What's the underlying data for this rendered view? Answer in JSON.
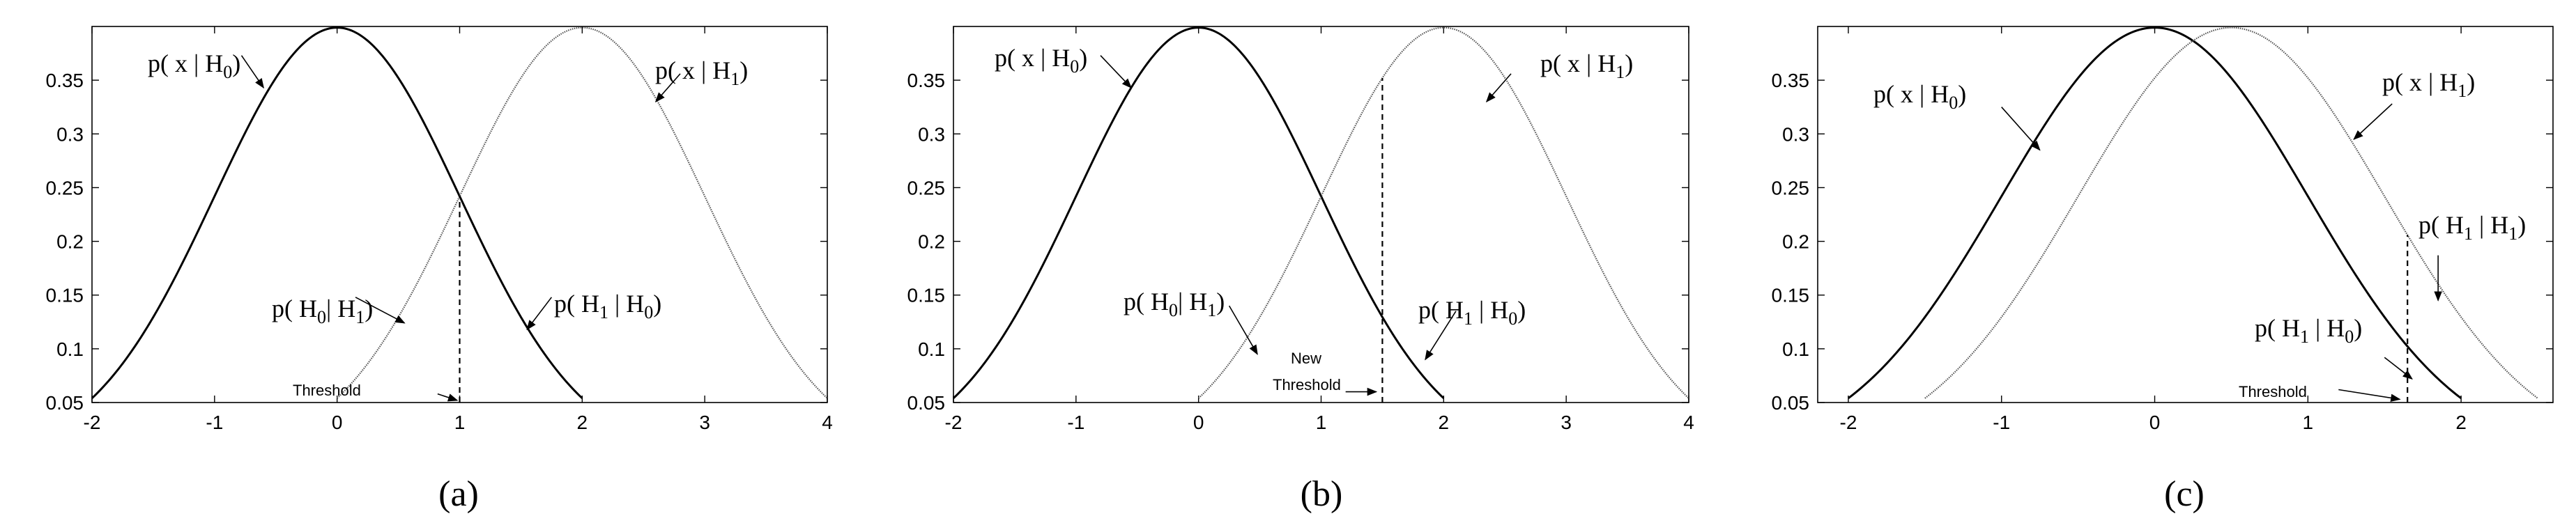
{
  "chart_data": [
    {
      "type": "line",
      "panel_label": "(a)",
      "xlim": [
        -2,
        4
      ],
      "ylim": [
        0.05,
        0.4
      ],
      "xticks": [
        "-2",
        "-1",
        "0",
        "1",
        "2",
        "3",
        "4"
      ],
      "yticks": [
        "0.05",
        "0.1",
        "0.15",
        "0.2",
        "0.25",
        "0.3",
        "0.35"
      ],
      "grid": false,
      "series": [
        {
          "name": "p( x | H0)",
          "style": "solid",
          "mean": 0,
          "sd": 1,
          "x": [
            -2.0,
            -1.5,
            -1.0,
            -0.5,
            0.0,
            0.5,
            1.0,
            1.5,
            2.0
          ],
          "y": [
            0.054,
            0.13,
            0.242,
            0.352,
            0.399,
            0.352,
            0.242,
            0.13,
            0.054
          ]
        },
        {
          "name": "p( x | H1)",
          "style": "dotted",
          "mean": 2,
          "sd": 1,
          "x": [
            0.0,
            0.5,
            1.0,
            1.5,
            2.0,
            2.5,
            3.0,
            3.5,
            4.0
          ],
          "y": [
            0.054,
            0.13,
            0.242,
            0.352,
            0.399,
            0.352,
            0.242,
            0.13,
            0.054
          ]
        }
      ],
      "threshold": 1,
      "annotations": [
        {
          "text": "p( x | H",
          "sub": "0",
          "tail": ")"
        },
        {
          "text": "p( x | H",
          "sub": "1",
          "tail": ")"
        },
        {
          "text": "p( H",
          "sub": "0",
          "mid": "| H",
          "sub2": "1",
          "tail": ")"
        },
        {
          "text": "p( H",
          "sub": "1",
          "mid": " | H",
          "sub2": "0",
          "tail": ")"
        },
        {
          "text": "Threshold"
        }
      ]
    },
    {
      "type": "line",
      "panel_label": "(b)",
      "xlim": [
        -2,
        4
      ],
      "ylim": [
        0.05,
        0.4
      ],
      "xticks": [
        "-2",
        "-1",
        "0",
        "1",
        "2",
        "3",
        "4"
      ],
      "yticks": [
        "0.05",
        "0.1",
        "0.15",
        "0.2",
        "0.25",
        "0.3",
        "0.35"
      ],
      "grid": false,
      "series": [
        {
          "name": "p( x | H0)",
          "style": "solid",
          "mean": 0,
          "sd": 1,
          "x": [
            -2.0,
            -1.5,
            -1.0,
            -0.5,
            0.0,
            0.5,
            1.0,
            1.5,
            2.0
          ],
          "y": [
            0.054,
            0.13,
            0.242,
            0.352,
            0.399,
            0.352,
            0.242,
            0.13,
            0.054
          ]
        },
        {
          "name": "p( x | H1)",
          "style": "dotted",
          "mean": 2,
          "sd": 1,
          "x": [
            0.0,
            0.5,
            1.0,
            1.5,
            2.0,
            2.5,
            3.0,
            3.5,
            4.0
          ],
          "y": [
            0.054,
            0.13,
            0.242,
            0.352,
            0.399,
            0.352,
            0.242,
            0.13,
            0.054
          ]
        }
      ],
      "threshold": 1.5,
      "annotations": [
        {
          "text": "p( x | H",
          "sub": "0",
          "tail": ")"
        },
        {
          "text": "p( x | H",
          "sub": "1",
          "tail": ")"
        },
        {
          "text": "p( H",
          "sub": "0",
          "mid": "| H",
          "sub2": "1",
          "tail": ")"
        },
        {
          "text": "p( H",
          "sub": "1",
          "mid": " | H",
          "sub2": "0",
          "tail": ")"
        },
        {
          "text": "New",
          "text2": "Threshold"
        }
      ]
    },
    {
      "type": "line",
      "panel_label": "(c)",
      "xlim": [
        -2.2,
        2.6
      ],
      "ylim": [
        0.05,
        0.4
      ],
      "xticks": [
        "-2",
        "-1",
        "0",
        "1",
        "2"
      ],
      "yticks": [
        "0.05",
        "0.1",
        "0.15",
        "0.2",
        "0.25",
        "0.3",
        "0.35"
      ],
      "grid": false,
      "series": [
        {
          "name": "p( x | H0)",
          "style": "solid",
          "mean": 0,
          "sd": 1,
          "x": [
            -2.0,
            -1.5,
            -1.0,
            -0.5,
            0.0,
            0.5,
            1.0,
            1.5,
            2.0
          ],
          "y": [
            0.054,
            0.13,
            0.242,
            0.352,
            0.399,
            0.352,
            0.242,
            0.13,
            0.054
          ]
        },
        {
          "name": "p( x | H1)",
          "style": "dotted",
          "mean": 0.5,
          "sd": 1,
          "x": [
            -1.5,
            -1.0,
            -0.5,
            0.0,
            0.5,
            1.0,
            1.5,
            2.0,
            2.5
          ],
          "y": [
            0.054,
            0.13,
            0.242,
            0.352,
            0.399,
            0.352,
            0.242,
            0.13,
            0.054
          ]
        }
      ],
      "threshold": 1.65,
      "annotations": [
        {
          "text": "p( x | H",
          "sub": "0",
          "tail": ")"
        },
        {
          "text": "p( x | H",
          "sub": "1",
          "tail": ")"
        },
        {
          "text": "p( H",
          "sub": "1",
          "mid": " | H",
          "sub2": "1",
          "tail": ")"
        },
        {
          "text": "p( H",
          "sub": "1",
          "mid": " | H",
          "sub2": "0",
          "tail": ")"
        },
        {
          "text": "Threshold"
        }
      ]
    }
  ]
}
